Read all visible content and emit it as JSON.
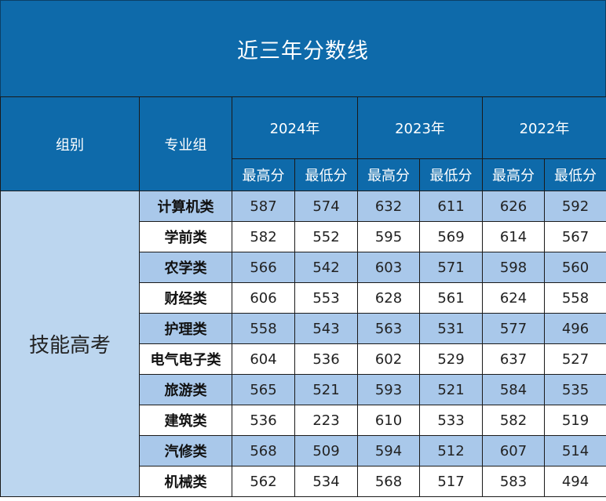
{
  "title": "近三年分数线",
  "header": {
    "group_label": "组别",
    "major_label": "专业组",
    "years": [
      "2024年",
      "2023年",
      "2022年"
    ],
    "max_label": "最高分",
    "min_label": "最低分"
  },
  "category": "技能高考",
  "rows": [
    {
      "name": "计算机类",
      "scores": [
        "587",
        "574",
        "632",
        "611",
        "626",
        "592"
      ]
    },
    {
      "name": "学前类",
      "scores": [
        "582",
        "552",
        "595",
        "569",
        "614",
        "567"
      ]
    },
    {
      "name": "农学类",
      "scores": [
        "566",
        "542",
        "603",
        "571",
        "598",
        "560"
      ]
    },
    {
      "name": "财经类",
      "scores": [
        "606",
        "553",
        "628",
        "561",
        "624",
        "558"
      ]
    },
    {
      "name": "护理类",
      "scores": [
        "558",
        "543",
        "563",
        "531",
        "577",
        "496"
      ]
    },
    {
      "name": "电气电子类",
      "scores": [
        "604",
        "536",
        "602",
        "529",
        "637",
        "527"
      ]
    },
    {
      "name": "旅游类",
      "scores": [
        "565",
        "521",
        "593",
        "521",
        "584",
        "535"
      ]
    },
    {
      "name": "建筑类",
      "scores": [
        "536",
        "223",
        "610",
        "533",
        "582",
        "519"
      ]
    },
    {
      "name": "汽修类",
      "scores": [
        "568",
        "509",
        "594",
        "512",
        "607",
        "514"
      ]
    },
    {
      "name": "机械类",
      "scores": [
        "562",
        "534",
        "568",
        "517",
        "583",
        "494"
      ]
    }
  ],
  "colors": {
    "header_blue": "#0e6aaa",
    "row_shade": "#a9c8ea",
    "category_bg": "#bcd6ef"
  }
}
